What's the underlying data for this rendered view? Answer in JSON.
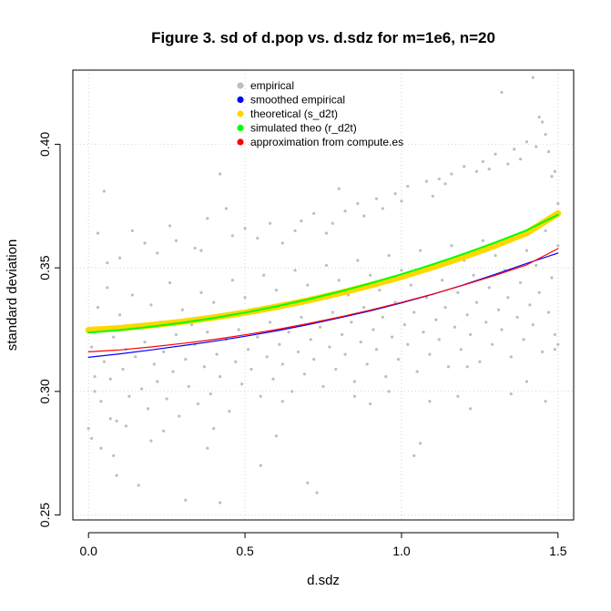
{
  "chart_data": {
    "type": "scatter",
    "title": "Figure 3. sd of d.pop vs. d.sdz for m=1e6, n=20",
    "xlabel": "d.sdz",
    "ylabel": "standard deviation",
    "xlim": [
      -0.05,
      1.55
    ],
    "ylim": [
      0.248,
      0.43
    ],
    "xticks": [
      0.0,
      0.5,
      1.0,
      1.5
    ],
    "xtick_labels": [
      "0.0",
      "0.5",
      "1.0",
      "1.5"
    ],
    "yticks": [
      0.25,
      0.3,
      0.35,
      0.4
    ],
    "ytick_labels": [
      "0.25",
      "0.30",
      "0.35",
      "0.40"
    ],
    "grid": true,
    "legend_position": "top-center",
    "legend": [
      {
        "label": "empirical",
        "color": "#bebebe"
      },
      {
        "label": "smoothed empirical",
        "color": "#0000ff"
      },
      {
        "label": "theoretical (s_d2t)",
        "color": "#ffd700"
      },
      {
        "label": "simulated theo (r_d2t)",
        "color": "#00ff00"
      },
      {
        "label": "approximation from compute.es",
        "color": "#ff0000"
      }
    ],
    "series": [
      {
        "name": "empirical",
        "kind": "points",
        "color": "#bebebe",
        "points": [
          [
            0.0,
            0.285
          ],
          [
            0.01,
            0.318
          ],
          [
            0.02,
            0.3
          ],
          [
            0.03,
            0.334
          ],
          [
            0.04,
            0.296
          ],
          [
            0.05,
            0.312
          ],
          [
            0.06,
            0.342
          ],
          [
            0.07,
            0.305
          ],
          [
            0.08,
            0.322
          ],
          [
            0.09,
            0.288
          ],
          [
            0.1,
            0.331
          ],
          [
            0.11,
            0.309
          ],
          [
            0.12,
            0.317
          ],
          [
            0.13,
            0.298
          ],
          [
            0.14,
            0.339
          ],
          [
            0.15,
            0.314
          ],
          [
            0.16,
            0.326
          ],
          [
            0.17,
            0.301
          ],
          [
            0.18,
            0.32
          ],
          [
            0.19,
            0.293
          ],
          [
            0.2,
            0.335
          ],
          [
            0.21,
            0.311
          ],
          [
            0.22,
            0.304
          ],
          [
            0.23,
            0.328
          ],
          [
            0.24,
            0.316
          ],
          [
            0.25,
            0.297
          ],
          [
            0.26,
            0.344
          ],
          [
            0.27,
            0.308
          ],
          [
            0.28,
            0.323
          ],
          [
            0.29,
            0.29
          ],
          [
            0.3,
            0.333
          ],
          [
            0.31,
            0.313
          ],
          [
            0.32,
            0.302
          ],
          [
            0.33,
            0.327
          ],
          [
            0.34,
            0.319
          ],
          [
            0.35,
            0.295
          ],
          [
            0.36,
            0.34
          ],
          [
            0.37,
            0.31
          ],
          [
            0.38,
            0.324
          ],
          [
            0.39,
            0.299
          ],
          [
            0.4,
            0.336
          ],
          [
            0.41,
            0.315
          ],
          [
            0.42,
            0.306
          ],
          [
            0.43,
            0.33
          ],
          [
            0.44,
            0.321
          ],
          [
            0.45,
            0.292
          ],
          [
            0.46,
            0.345
          ],
          [
            0.47,
            0.312
          ],
          [
            0.48,
            0.325
          ],
          [
            0.49,
            0.303
          ],
          [
            0.5,
            0.338
          ],
          [
            0.51,
            0.317
          ],
          [
            0.52,
            0.309
          ],
          [
            0.53,
            0.332
          ],
          [
            0.54,
            0.322
          ],
          [
            0.55,
            0.298
          ],
          [
            0.56,
            0.347
          ],
          [
            0.57,
            0.314
          ],
          [
            0.58,
            0.328
          ],
          [
            0.59,
            0.305
          ],
          [
            0.6,
            0.341
          ],
          [
            0.61,
            0.319
          ],
          [
            0.62,
            0.311
          ],
          [
            0.63,
            0.335
          ],
          [
            0.64,
            0.324
          ],
          [
            0.65,
            0.3
          ],
          [
            0.66,
            0.349
          ],
          [
            0.67,
            0.316
          ],
          [
            0.68,
            0.33
          ],
          [
            0.69,
            0.307
          ],
          [
            0.7,
            0.343
          ],
          [
            0.71,
            0.321
          ],
          [
            0.72,
            0.313
          ],
          [
            0.73,
            0.337
          ],
          [
            0.74,
            0.326
          ],
          [
            0.75,
            0.302
          ],
          [
            0.76,
            0.351
          ],
          [
            0.77,
            0.318
          ],
          [
            0.78,
            0.332
          ],
          [
            0.79,
            0.309
          ],
          [
            0.8,
            0.345
          ],
          [
            0.81,
            0.323
          ],
          [
            0.82,
            0.315
          ],
          [
            0.83,
            0.339
          ],
          [
            0.84,
            0.328
          ],
          [
            0.85,
            0.304
          ],
          [
            0.86,
            0.353
          ],
          [
            0.87,
            0.32
          ],
          [
            0.88,
            0.334
          ],
          [
            0.89,
            0.311
          ],
          [
            0.9,
            0.347
          ],
          [
            0.91,
            0.325
          ],
          [
            0.92,
            0.317
          ],
          [
            0.93,
            0.341
          ],
          [
            0.94,
            0.33
          ],
          [
            0.95,
            0.306
          ],
          [
            0.96,
            0.355
          ],
          [
            0.97,
            0.322
          ],
          [
            0.98,
            0.336
          ],
          [
            0.99,
            0.313
          ],
          [
            1.0,
            0.349
          ],
          [
            1.01,
            0.327
          ],
          [
            1.02,
            0.319
          ],
          [
            1.03,
            0.343
          ],
          [
            1.04,
            0.332
          ],
          [
            1.05,
            0.308
          ],
          [
            1.06,
            0.357
          ],
          [
            1.07,
            0.324
          ],
          [
            1.08,
            0.338
          ],
          [
            1.09,
            0.315
          ],
          [
            1.1,
            0.351
          ],
          [
            1.11,
            0.329
          ],
          [
            1.12,
            0.321
          ],
          [
            1.13,
            0.345
          ],
          [
            1.14,
            0.334
          ],
          [
            1.15,
            0.31
          ],
          [
            1.16,
            0.359
          ],
          [
            1.17,
            0.326
          ],
          [
            1.18,
            0.34
          ],
          [
            1.19,
            0.317
          ],
          [
            1.2,
            0.353
          ],
          [
            1.21,
            0.331
          ],
          [
            1.22,
            0.323
          ],
          [
            1.23,
            0.347
          ],
          [
            1.24,
            0.336
          ],
          [
            1.25,
            0.312
          ],
          [
            1.26,
            0.361
          ],
          [
            1.27,
            0.328
          ],
          [
            1.28,
            0.342
          ],
          [
            1.29,
            0.319
          ],
          [
            1.3,
            0.355
          ],
          [
            1.31,
            0.333
          ],
          [
            1.32,
            0.325
          ],
          [
            1.33,
            0.349
          ],
          [
            1.34,
            0.338
          ],
          [
            1.35,
            0.314
          ],
          [
            1.36,
            0.363
          ],
          [
            1.37,
            0.33
          ],
          [
            1.38,
            0.344
          ],
          [
            1.39,
            0.321
          ],
          [
            1.4,
            0.357
          ],
          [
            1.41,
            0.335
          ],
          [
            1.42,
            0.327
          ],
          [
            1.43,
            0.351
          ],
          [
            1.44,
            0.34
          ],
          [
            1.45,
            0.316
          ],
          [
            1.46,
            0.365
          ],
          [
            1.47,
            0.332
          ],
          [
            1.48,
            0.346
          ],
          [
            1.49,
            0.323
          ],
          [
            1.5,
            0.359
          ],
          [
            0.03,
            0.364
          ],
          [
            0.05,
            0.381
          ],
          [
            0.08,
            0.274
          ],
          [
            0.09,
            0.266
          ],
          [
            0.16,
            0.262
          ],
          [
            0.31,
            0.256
          ],
          [
            0.36,
            0.357
          ],
          [
            0.42,
            0.388
          ],
          [
            0.42,
            0.255
          ],
          [
            0.55,
            0.27
          ],
          [
            0.7,
            0.263
          ],
          [
            0.73,
            0.259
          ],
          [
            0.8,
            0.382
          ],
          [
            1.04,
            0.274
          ],
          [
            1.06,
            0.279
          ],
          [
            1.12,
            0.386
          ],
          [
            1.32,
            0.421
          ],
          [
            1.42,
            0.427
          ],
          [
            1.44,
            0.411
          ],
          [
            1.45,
            0.409
          ],
          [
            1.47,
            0.397
          ],
          [
            1.48,
            0.387
          ],
          [
            1.49,
            0.389
          ],
          [
            1.5,
            0.376
          ],
          [
            1.5,
            0.319
          ],
          [
            1.49,
            0.317
          ],
          [
            1.46,
            0.296
          ],
          [
            1.4,
            0.304
          ],
          [
            1.35,
            0.299
          ],
          [
            1.22,
            0.293
          ],
          [
            1.21,
            0.31
          ],
          [
            1.18,
            0.298
          ],
          [
            1.09,
            0.296
          ],
          [
            0.96,
            0.3
          ],
          [
            0.9,
            0.295
          ],
          [
            0.85,
            0.298
          ],
          [
            0.62,
            0.296
          ],
          [
            0.6,
            0.282
          ],
          [
            0.4,
            0.285
          ],
          [
            0.38,
            0.277
          ],
          [
            0.24,
            0.284
          ],
          [
            0.2,
            0.28
          ],
          [
            0.12,
            0.286
          ],
          [
            0.07,
            0.289
          ],
          [
            0.04,
            0.277
          ],
          [
            0.01,
            0.281
          ],
          [
            0.02,
            0.306
          ],
          [
            0.06,
            0.352
          ],
          [
            0.1,
            0.354
          ],
          [
            0.14,
            0.365
          ],
          [
            0.18,
            0.36
          ],
          [
            0.22,
            0.356
          ],
          [
            0.26,
            0.367
          ],
          [
            0.28,
            0.361
          ],
          [
            0.34,
            0.358
          ],
          [
            0.38,
            0.37
          ],
          [
            0.44,
            0.374
          ],
          [
            0.46,
            0.363
          ],
          [
            0.5,
            0.366
          ],
          [
            0.54,
            0.362
          ],
          [
            0.58,
            0.368
          ],
          [
            0.62,
            0.36
          ],
          [
            0.66,
            0.365
          ],
          [
            0.68,
            0.369
          ],
          [
            0.72,
            0.372
          ],
          [
            0.76,
            0.364
          ],
          [
            0.78,
            0.368
          ],
          [
            0.82,
            0.373
          ],
          [
            0.86,
            0.376
          ],
          [
            0.88,
            0.371
          ],
          [
            0.92,
            0.378
          ],
          [
            0.94,
            0.374
          ],
          [
            0.98,
            0.38
          ],
          [
            1.0,
            0.377
          ],
          [
            1.02,
            0.383
          ],
          [
            1.08,
            0.385
          ],
          [
            1.1,
            0.379
          ],
          [
            1.14,
            0.384
          ],
          [
            1.16,
            0.388
          ],
          [
            1.2,
            0.391
          ],
          [
            1.24,
            0.389
          ],
          [
            1.26,
            0.393
          ],
          [
            1.28,
            0.39
          ],
          [
            1.3,
            0.396
          ],
          [
            1.34,
            0.392
          ],
          [
            1.36,
            0.398
          ],
          [
            1.38,
            0.394
          ],
          [
            1.4,
            0.401
          ],
          [
            1.43,
            0.399
          ],
          [
            1.46,
            0.404
          ]
        ]
      },
      {
        "name": "smoothed empirical",
        "kind": "line",
        "color": "#0000ff",
        "x": [
          0.0,
          0.1,
          0.2,
          0.3,
          0.4,
          0.5,
          0.6,
          0.7,
          0.8,
          0.9,
          1.0,
          1.1,
          1.2,
          1.3,
          1.4,
          1.5
        ],
        "y": [
          0.3138,
          0.3152,
          0.3168,
          0.3185,
          0.3203,
          0.3223,
          0.3245,
          0.327,
          0.3297,
          0.3326,
          0.3358,
          0.3393,
          0.3432,
          0.3474,
          0.3518,
          0.356
        ]
      },
      {
        "name": "theoretical (s_d2t)",
        "kind": "line",
        "color": "#ffd700",
        "x": [
          0.0,
          0.1,
          0.2,
          0.3,
          0.4,
          0.5,
          0.6,
          0.7,
          0.8,
          0.9,
          1.0,
          1.1,
          1.2,
          1.3,
          1.4,
          1.5
        ],
        "y": [
          0.3248,
          0.3256,
          0.3268,
          0.3282,
          0.3299,
          0.3319,
          0.3342,
          0.3368,
          0.3397,
          0.3429,
          0.3464,
          0.3503,
          0.3545,
          0.3591,
          0.3641,
          0.372
        ]
      },
      {
        "name": "simulated theo (r_d2t)",
        "kind": "line",
        "color": "#00ff00",
        "x": [
          0.0,
          0.1,
          0.2,
          0.3,
          0.4,
          0.5,
          0.6,
          0.7,
          0.8,
          0.9,
          1.0,
          1.1,
          1.2,
          1.3,
          1.4,
          1.5
        ],
        "y": [
          0.3238,
          0.3248,
          0.3262,
          0.3278,
          0.3297,
          0.3319,
          0.3344,
          0.3372,
          0.3403,
          0.3437,
          0.3474,
          0.3514,
          0.3557,
          0.3603,
          0.3652,
          0.3715
        ]
      },
      {
        "name": "approximation from compute.es",
        "kind": "line",
        "color": "#ff0000",
        "x": [
          0.0,
          0.1,
          0.2,
          0.3,
          0.4,
          0.5,
          0.6,
          0.7,
          0.8,
          0.9,
          1.0,
          1.1,
          1.2,
          1.3,
          1.4,
          1.5
        ],
        "y": [
          0.316,
          0.3168,
          0.318,
          0.3194,
          0.321,
          0.3229,
          0.325,
          0.3274,
          0.33,
          0.3329,
          0.336,
          0.3394,
          0.3431,
          0.347,
          0.3512,
          0.3578
        ]
      }
    ]
  }
}
